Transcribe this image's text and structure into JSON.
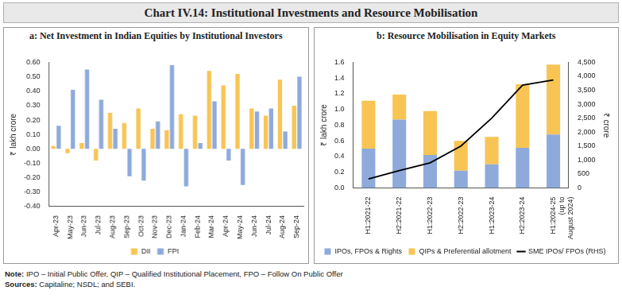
{
  "title": "Chart IV.14: Institutional Investments and Resource Mobilisation",
  "note": "Note: IPO – Initial Public Offer, QIP – Qualified Institutional Placement, FPO – Follow On Public Offer",
  "sources": "Sources: Capitaline; NSDL; and SEBI.",
  "chart_data": [
    {
      "type": "bar",
      "title": "a: Net Investment in Indian Equities by Institutional Investors",
      "y_label": "₹ lakh crore",
      "categories": [
        "Apr-23",
        "May-23",
        "Jun-23",
        "Jul-23",
        "Aug-23",
        "Sep-23",
        "Oct-23",
        "Nov-23",
        "Dec-23",
        "Jan-24",
        "Feb-24",
        "Mar-24",
        "Apr-24",
        "May-24",
        "Jun-24",
        "Jul-24",
        "Aug-24",
        "Sep-24"
      ],
      "series": [
        {
          "name": "DII",
          "color": "#F8C453",
          "values": [
            0.02,
            -0.03,
            0.04,
            -0.08,
            0.25,
            0.18,
            0.28,
            0.14,
            0.13,
            0.24,
            0.23,
            0.54,
            0.44,
            0.52,
            0.28,
            0.23,
            0.48,
            0.3
          ]
        },
        {
          "name": "FPI",
          "color": "#8EAADB",
          "values": [
            0.16,
            0.41,
            0.55,
            0.34,
            0.14,
            -0.19,
            -0.22,
            0.19,
            0.58,
            -0.26,
            0.04,
            0.33,
            -0.08,
            -0.25,
            0.26,
            0.28,
            0.12,
            0.5
          ]
        }
      ],
      "ylim": [
        -0.4,
        0.6
      ],
      "yticks": [
        {
          "value": -0.4,
          "label": "-0.40"
        },
        {
          "value": -0.3,
          "label": "-0.30"
        },
        {
          "value": -0.2,
          "label": "-0.20"
        },
        {
          "value": -0.1,
          "label": "-0.10"
        },
        {
          "value": 0,
          "label": "0.00"
        },
        {
          "value": 0.1,
          "label": "0.10"
        },
        {
          "value": 0.2,
          "label": "0.20"
        },
        {
          "value": 0.3,
          "label": "0.30"
        },
        {
          "value": 0.4,
          "label": "0.40"
        },
        {
          "value": 0.5,
          "label": "0.50"
        },
        {
          "value": 0.6,
          "label": "0.60"
        }
      ],
      "grid": false,
      "legend": "bottom"
    },
    {
      "type": "bar",
      "title": "b: Resource Mobilisation in Equity Markets",
      "y_label": "₹ lakh crore",
      "y2_label": "₹ crore",
      "stacked": true,
      "categories": [
        "H1:2021-22",
        "H2:2021-22",
        "H1:2022-23",
        "H2:2022-23",
        "H1:2023-24",
        "H2:2023-24",
        "H1:2024-25 (up to August 2024)"
      ],
      "series": [
        {
          "name": "IPOs, FPOs & Rights",
          "color": "#8EAADB",
          "values": [
            0.5,
            0.87,
            0.42,
            0.22,
            0.3,
            0.51,
            0.68
          ]
        },
        {
          "name": "QIPs & Preferential allotment",
          "color": "#F8C453",
          "values": [
            0.61,
            0.32,
            0.56,
            0.38,
            0.35,
            0.81,
            0.89
          ]
        },
        {
          "name": "SME IPOs/ FPOs (RHS)",
          "type": "line",
          "axis": "y2",
          "color": "#000000",
          "values": [
            320,
            620,
            900,
            1500,
            2500,
            3680,
            3870
          ]
        }
      ],
      "ylim": [
        0,
        1.6
      ],
      "yticks": [
        {
          "value": 0,
          "label": "0.0"
        },
        {
          "value": 0.2,
          "label": "0.2"
        },
        {
          "value": 0.4,
          "label": "0.4"
        },
        {
          "value": 0.6,
          "label": "0.6"
        },
        {
          "value": 0.8,
          "label": "0.8"
        },
        {
          "value": 1,
          "label": "1.0"
        },
        {
          "value": 1.2,
          "label": "1.2"
        },
        {
          "value": 1.4,
          "label": "1.4"
        },
        {
          "value": 1.6,
          "label": "1.6"
        }
      ],
      "y2lim": [
        0,
        4500
      ],
      "y2ticks": [
        0,
        500,
        {
          "value": 1000,
          "label": "1,000"
        },
        {
          "value": 1500,
          "label": "1,500"
        },
        {
          "value": 2000,
          "label": "2,000"
        },
        {
          "value": 2500,
          "label": "2,500"
        },
        {
          "value": 3000,
          "label": "3,000"
        },
        {
          "value": 3500,
          "label": "3,500"
        },
        {
          "value": 4000,
          "label": "4,000"
        },
        {
          "value": 4500,
          "label": "4,500"
        }
      ],
      "grid": false,
      "legend": "bottom"
    }
  ]
}
